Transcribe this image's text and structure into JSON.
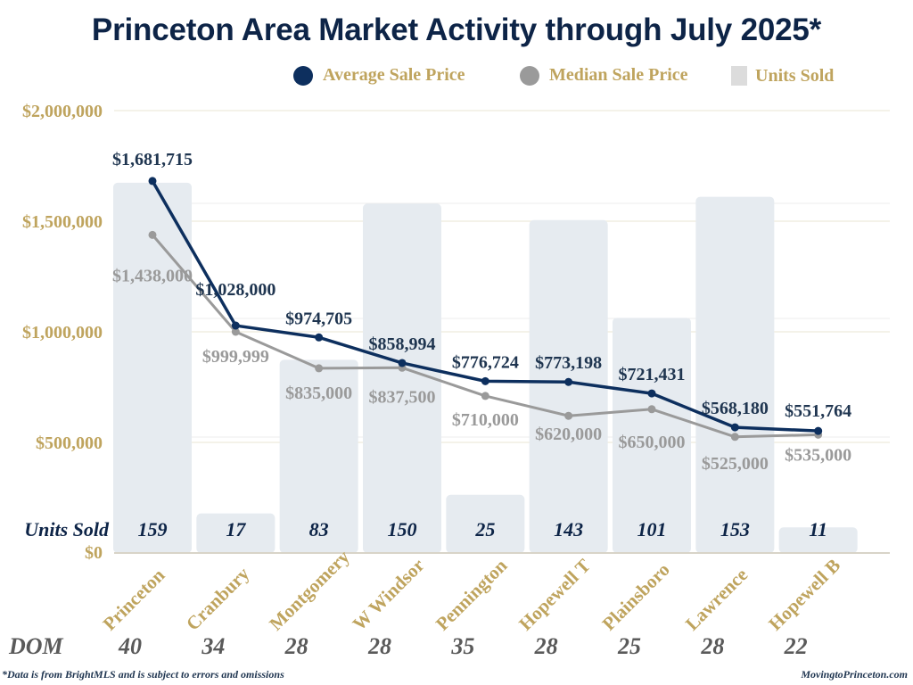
{
  "title": "Princeton Area Market Activity through July 2025*",
  "footnote": "*Data is from BrightMLS and is subject to errors and omissions",
  "source": "MovingtoPrinceton.com",
  "colors": {
    "average": "#0d2f5e",
    "median": "#9a9a9a",
    "bars": "#e6ebf0",
    "axis_text": "#bfa45e",
    "title": "#0d2447"
  },
  "chart_data": {
    "type": "bar+line",
    "title": "Princeton Area Market Activity through July 2025*",
    "categories": [
      "Princeton",
      "Cranbury",
      "Montgomery",
      "W Windsor",
      "Pennington",
      "Hopewell T",
      "Plainsboro",
      "Lawrence",
      "Hopewell B"
    ],
    "legend": {
      "position": "top-right",
      "entries": [
        "Average Sale Price",
        "Median Sale Price",
        "Units Sold"
      ]
    },
    "yaxis": {
      "ticks": [
        0,
        500000,
        1000000,
        1500000,
        2000000
      ],
      "tick_labels": [
        "$0",
        "$500,000",
        "$1,000,000",
        "$1,500,000",
        "$2,000,000"
      ],
      "ylim": [
        0,
        2000000
      ],
      "grid": true
    },
    "series": [
      {
        "name": "Average Sale Price",
        "type": "line",
        "values": [
          1681715,
          1028000,
          974705,
          858994,
          776724,
          773198,
          721431,
          568180,
          551764
        ],
        "labels": [
          "$1,681,715",
          "$1,028,000",
          "$974,705",
          "$858,994",
          "$776,724",
          "$773,198",
          "$721,431",
          "$568,180",
          "$551,764"
        ]
      },
      {
        "name": "Median Sale Price",
        "type": "line",
        "values": [
          1438000,
          999999,
          835000,
          837500,
          710000,
          620000,
          650000,
          525000,
          535000
        ],
        "labels": [
          "$1,438,000",
          "$999,999",
          "$835,000",
          "$837,500",
          "$710,000",
          "$620,000",
          "$650,000",
          "$525,000",
          "$535,000"
        ]
      },
      {
        "name": "Units Sold",
        "type": "bar",
        "values": [
          159,
          17,
          83,
          150,
          25,
          143,
          101,
          153,
          11
        ],
        "labels": [
          "159",
          "17",
          "83",
          "150",
          "25",
          "143",
          "101",
          "153",
          "11"
        ]
      }
    ],
    "units_row_label": "Units Sold",
    "dom": {
      "label": "DOM",
      "values": [
        40,
        34,
        28,
        28,
        35,
        28,
        25,
        28,
        22
      ]
    }
  }
}
